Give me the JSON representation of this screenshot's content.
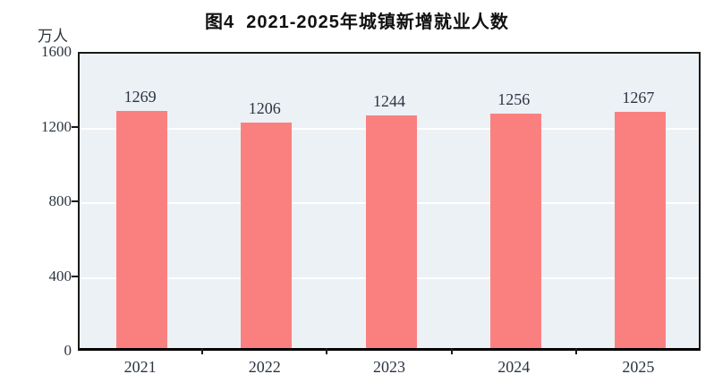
{
  "chart_data": {
    "type": "bar",
    "title": "图4  2021-2025年城镇新增就业人数",
    "unit_label": "万人",
    "categories": [
      "2021",
      "2022",
      "2023",
      "2024",
      "2025"
    ],
    "values": [
      1269,
      1206,
      1244,
      1256,
      1267
    ],
    "xlabel": "",
    "ylabel": "万人",
    "ylim": [
      0,
      1600
    ],
    "yticks": [
      0,
      400,
      800,
      1200,
      1600
    ],
    "grid": "horizontal",
    "legend": "none",
    "colors": {
      "bar": "#fa8080",
      "plot_background": "#ecf1f6",
      "gridline": "#ffffff",
      "axis": "#1a1a1a",
      "text": "#2b3440",
      "title": "#111111",
      "page_background": "#ffffff"
    }
  }
}
